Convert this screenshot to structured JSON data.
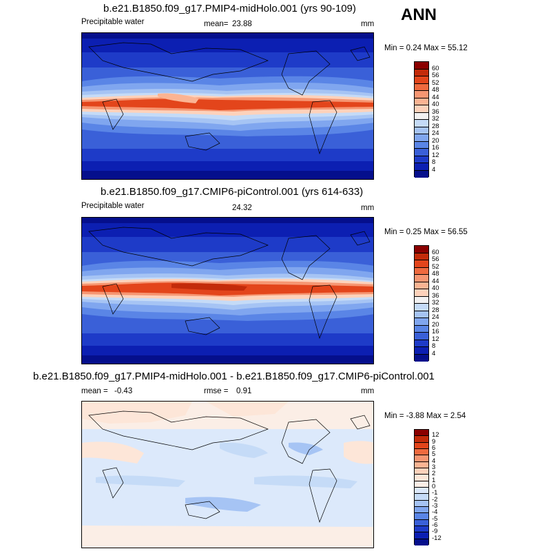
{
  "season": "ANN",
  "panels": [
    {
      "title": "b.e21.B1850.f09_g17.PMIP4-midHolo.001 (yrs 90-109)",
      "left_label": "Precipitable water",
      "mean_label": "mean=",
      "mean_value": "23.88",
      "units": "mm",
      "minmax": "Min =   0.24 Max =  55.12",
      "colorbar": {
        "levels": [
          "60",
          "56",
          "52",
          "48",
          "44",
          "40",
          "36",
          "32",
          "28",
          "24",
          "20",
          "16",
          "12",
          "8",
          "4"
        ],
        "colors": [
          "#8b0000",
          "#c32b0a",
          "#e3451b",
          "#ef6a3f",
          "#f69672",
          "#fbb493",
          "#fdd2bb",
          "#f2f2f2",
          "#c5dbf7",
          "#a6c4f4",
          "#80a6ef",
          "#5a85e6",
          "#3a60d8",
          "#1e3bc8",
          "#0c1fb2",
          "#050f8c"
        ]
      }
    },
    {
      "title": "b.e21.B1850.f09_g17.CMIP6-piControl.001 (yrs 614-633)",
      "left_label": "Precipitable water",
      "mean_label": "",
      "mean_value": "24.32",
      "units": "mm",
      "minmax": "Min =   0.25 Max =  56.55",
      "colorbar": {
        "levels": [
          "60",
          "56",
          "52",
          "48",
          "44",
          "40",
          "36",
          "32",
          "28",
          "24",
          "20",
          "16",
          "12",
          "8",
          "4"
        ],
        "colors": [
          "#8b0000",
          "#c32b0a",
          "#e3451b",
          "#ef6a3f",
          "#f69672",
          "#fbb493",
          "#fdd2bb",
          "#f2f2f2",
          "#c5dbf7",
          "#a6c4f4",
          "#80a6ef",
          "#5a85e6",
          "#3a60d8",
          "#1e3bc8",
          "#0c1fb2",
          "#050f8c"
        ]
      }
    },
    {
      "title": "b.e21.B1850.f09_g17.PMIP4-midHolo.001 - b.e21.B1850.f09_g17.CMIP6-piControl.001",
      "mean_label": "mean =",
      "mean_value": "-0.43",
      "rmse_label": "rmse =",
      "rmse_value": "0.91",
      "units": "mm",
      "minmax": "Min =  -3.88 Max =   2.54",
      "colorbar": {
        "levels": [
          "12",
          "9",
          "6",
          "5",
          "4",
          "3",
          "2",
          "1",
          "0",
          "-1",
          "-2",
          "-3",
          "-4",
          "-5",
          "-6",
          "-9",
          "-12"
        ],
        "colors": [
          "#8b0000",
          "#c32b0a",
          "#e3451b",
          "#ef6a3f",
          "#f69672",
          "#fbb493",
          "#fdd2bb",
          "#fde6d8",
          "#fbeee6",
          "#dce9fb",
          "#c5dbf7",
          "#a6c4f4",
          "#80a6ef",
          "#5a85e6",
          "#3a60d8",
          "#1e3bc8",
          "#0c1fb2",
          "#050f8c"
        ]
      }
    }
  ]
}
